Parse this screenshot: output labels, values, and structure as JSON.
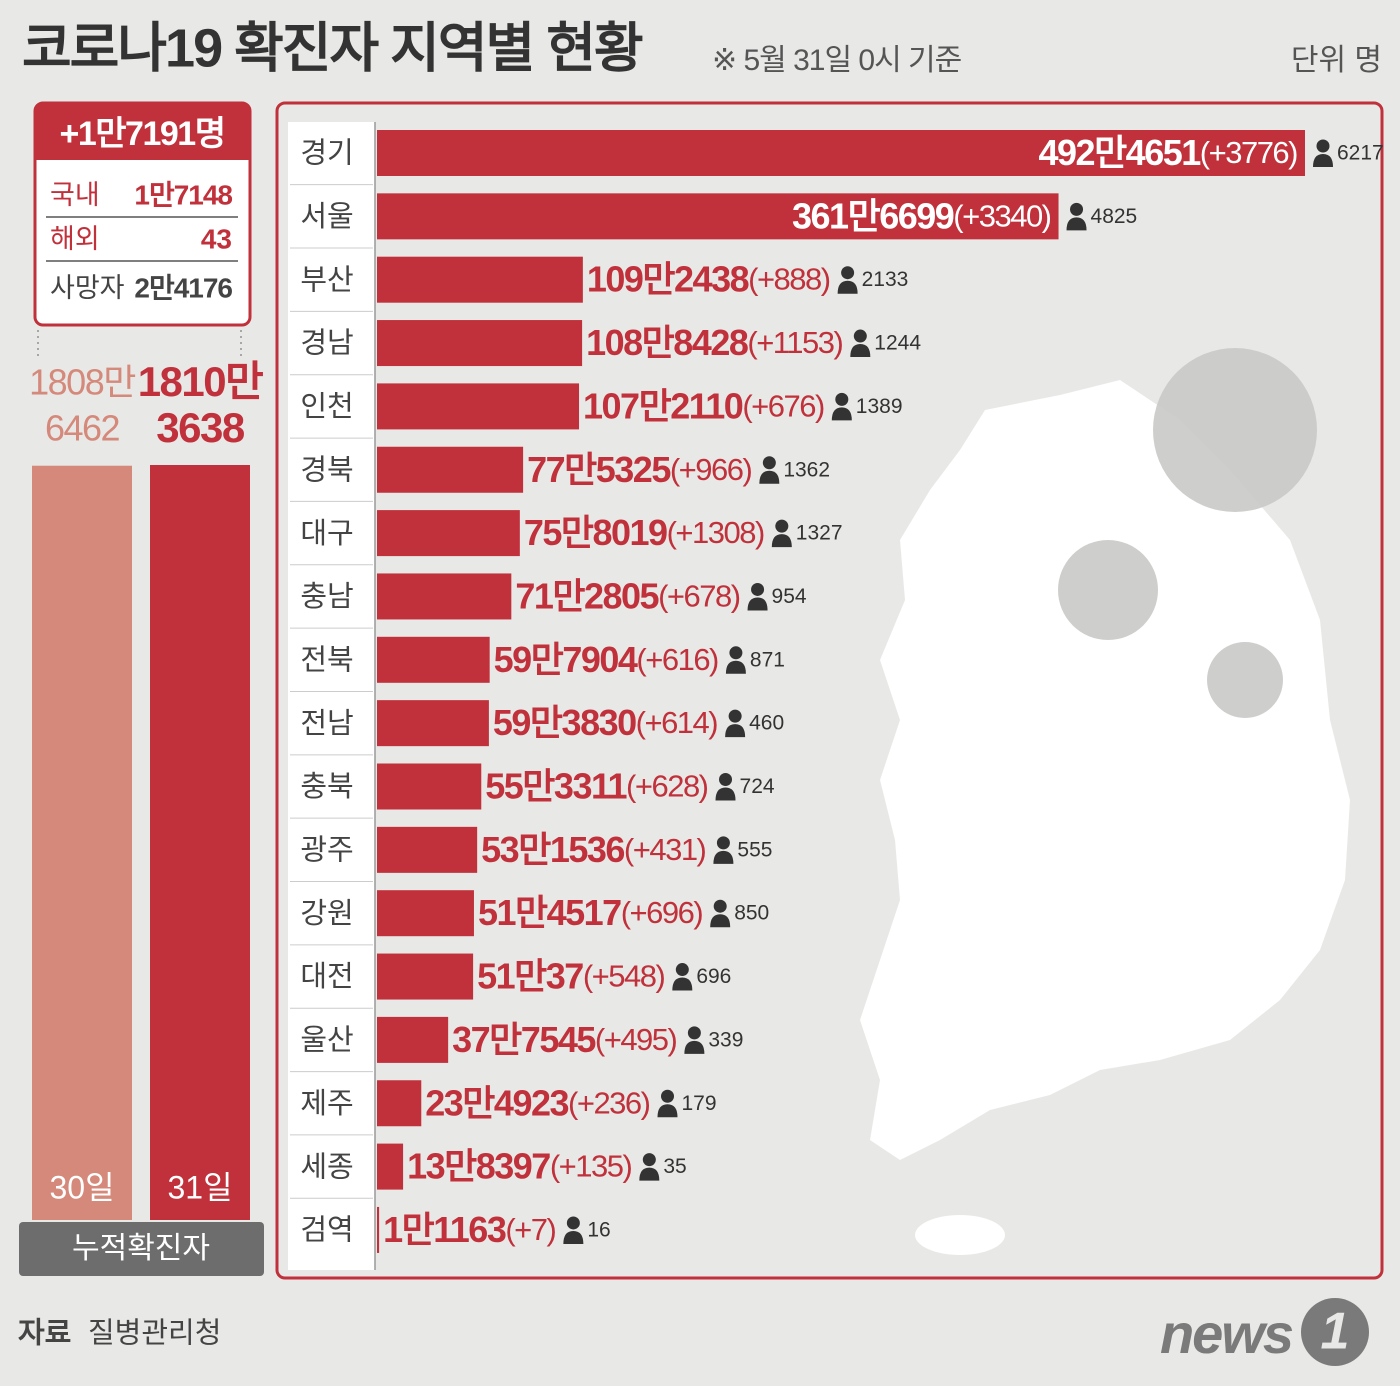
{
  "title": "코로나19 확진자 지역별 현황",
  "subtitle": "※ 5월 31일 0시 기준",
  "unit": "단위 명",
  "summary": {
    "total": "+1만7191명",
    "rows": [
      [
        "국내",
        "1만7148"
      ],
      [
        "해외",
        "43"
      ],
      [
        "사망자",
        "2만4176"
      ]
    ]
  },
  "source_label": "자료",
  "source": "질병관리청",
  "logo": {
    "word": "news",
    "digit": "1"
  },
  "chart_data": [
    {
      "type": "bar",
      "title": "누적확진자",
      "categories": [
        "30일",
        "31일"
      ],
      "values": [
        18086462,
        18103638
      ],
      "value_labels": [
        [
          "1808만",
          "6462"
        ],
        [
          "1810만",
          "3638"
        ]
      ],
      "colors": [
        "#d4897a",
        "#c0313b"
      ]
    },
    {
      "type": "barh",
      "color": "#c0313b",
      "categories": [
        "경기",
        "서울",
        "부산",
        "경남",
        "인천",
        "경북",
        "대구",
        "충남",
        "전북",
        "전남",
        "충북",
        "광주",
        "강원",
        "대전",
        "울산",
        "제주",
        "세종",
        "검역"
      ],
      "values": [
        4924651,
        3616699,
        1092438,
        1088428,
        1072110,
        775325,
        758019,
        712805,
        597904,
        593830,
        553311,
        531536,
        514517,
        510037,
        377545,
        234923,
        138397,
        11163
      ],
      "value_labels": [
        "492만4651",
        "361만6699",
        "109만2438",
        "108만8428",
        "107만2110",
        "77만5325",
        "75만8019",
        "71만2805",
        "59만7904",
        "59만3830",
        "55만3311",
        "53만1536",
        "51만4517",
        "51만37",
        "37만7545",
        "23만4923",
        "13만8397",
        "1만1163"
      ],
      "increase_labels": [
        "(+3776)",
        "(+3340)",
        "(+888)",
        "(+1153)",
        "(+676)",
        "(+966)",
        "(+1308)",
        "(+678)",
        "(+616)",
        "(+614)",
        "(+628)",
        "(+431)",
        "(+696)",
        "(+548)",
        "(+495)",
        "(+236)",
        "(+135)",
        "(+7)"
      ],
      "deaths": [
        6217,
        4825,
        2133,
        1244,
        1389,
        1362,
        1327,
        954,
        871,
        460,
        724,
        555,
        850,
        696,
        339,
        179,
        35,
        16
      ]
    }
  ]
}
